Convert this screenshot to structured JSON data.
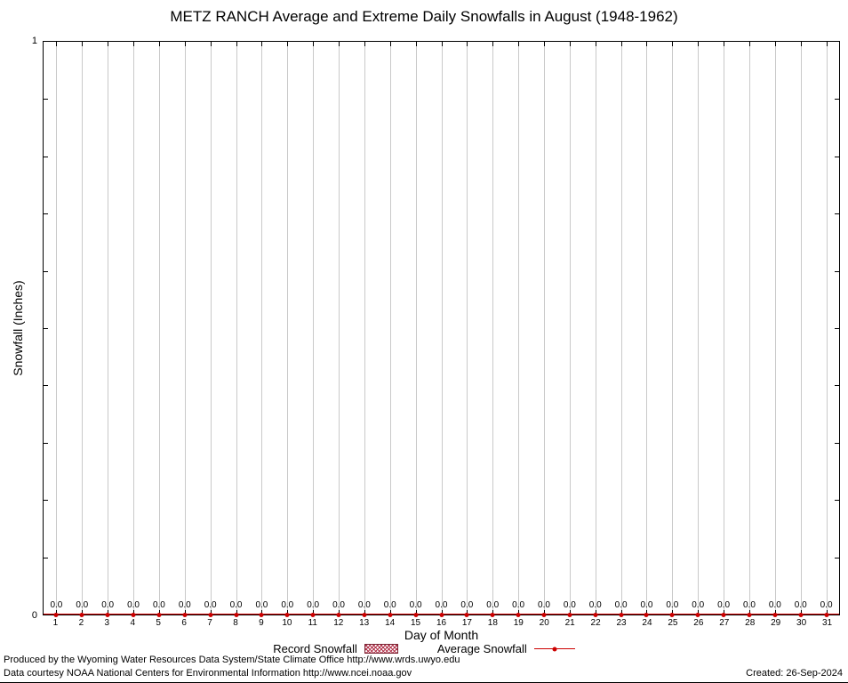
{
  "title": "METZ RANCH Average and Extreme Daily Snowfalls in August (1948-1962)",
  "chart_data": {
    "type": "line",
    "title": "METZ RANCH Average and Extreme Daily Snowfalls in August (1948-1962)",
    "xlabel": "Day of Month",
    "ylabel": "Snowfall (Inches)",
    "ylim": [
      0,
      1
    ],
    "ytick_top": "1",
    "ytick_bottom": "0",
    "grid": "vertical",
    "legend_position": "bottom-center",
    "x": [
      1,
      2,
      3,
      4,
      5,
      6,
      7,
      8,
      9,
      10,
      11,
      12,
      13,
      14,
      15,
      16,
      17,
      18,
      19,
      20,
      21,
      22,
      23,
      24,
      25,
      26,
      27,
      28,
      29,
      30,
      31
    ],
    "series": [
      {
        "name": "Record Snowfall",
        "style": "hatched-bar",
        "color": "#b03048",
        "values": [
          0,
          0,
          0,
          0,
          0,
          0,
          0,
          0,
          0,
          0,
          0,
          0,
          0,
          0,
          0,
          0,
          0,
          0,
          0,
          0,
          0,
          0,
          0,
          0,
          0,
          0,
          0,
          0,
          0,
          0,
          0
        ]
      },
      {
        "name": "Average Snowfall",
        "style": "line-with-points",
        "color": "#cc0000",
        "values": [
          0,
          0,
          0,
          0,
          0,
          0,
          0,
          0,
          0,
          0,
          0,
          0,
          0,
          0,
          0,
          0,
          0,
          0,
          0,
          0,
          0,
          0,
          0,
          0,
          0,
          0,
          0,
          0,
          0,
          0,
          0
        ]
      }
    ],
    "point_labels": [
      "0.0",
      "0.0",
      "0.0",
      "0.0",
      "0.0",
      "0.0",
      "0.0",
      "0.0",
      "0.0",
      "0.0",
      "0.0",
      "0.0",
      "0.0",
      "0.0",
      "0.0",
      "0.0",
      "0.0",
      "0.0",
      "0.0",
      "0.0",
      "0.0",
      "0.0",
      "0.0",
      "0.0",
      "0.0",
      "0.0",
      "0.0",
      "0.0",
      "0.0",
      "0.0",
      "0.0"
    ]
  },
  "legend": {
    "record_label": "Record Snowfall",
    "average_label": "Average Snowfall"
  },
  "footer": {
    "line1": "Produced by the Wyoming Water Resources Data System/State Climate Office http://www.wrds.uwyo.edu",
    "line2": "Data courtesy NOAA National Centers for Environmental Information http://www.ncei.noaa.gov",
    "created": "Created: 26-Sep-2024"
  }
}
